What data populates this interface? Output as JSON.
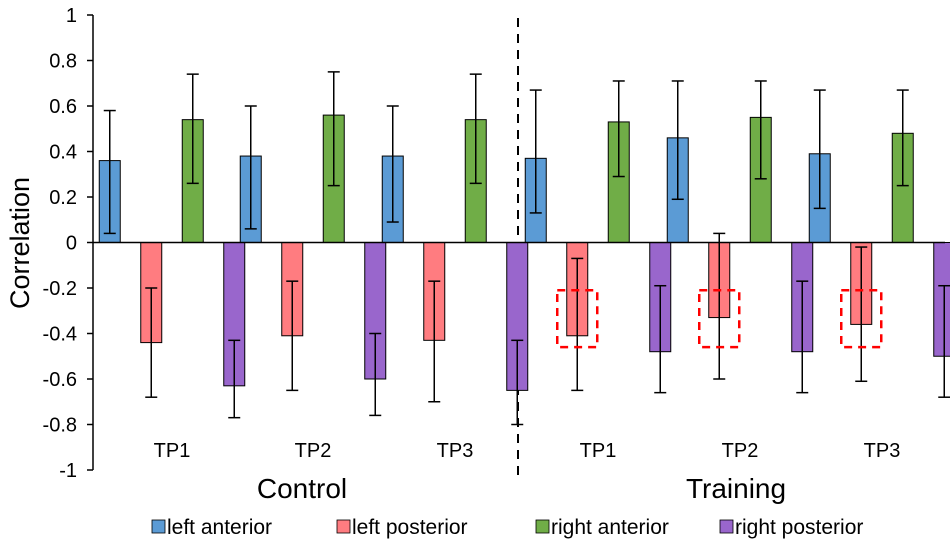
{
  "chart_data": {
    "type": "bar",
    "ylabel": "Correlation",
    "ylim": [
      -1,
      1
    ],
    "yticks": [
      "1",
      "0.8",
      "0.6",
      "0.4",
      "0.2",
      "0",
      "-0.2",
      "-0.4",
      "-0.6",
      "-0.8",
      "-1"
    ],
    "groups": [
      {
        "name": "Control",
        "categories": [
          "TP1",
          "TP2",
          "TP3"
        ]
      },
      {
        "name": "Training",
        "categories": [
          "TP1",
          "TP2",
          "TP3"
        ]
      }
    ],
    "series": [
      {
        "name": "left anterior",
        "color": "#5b9bd5",
        "values": [
          0.36,
          0.38,
          0.38,
          0.37,
          0.46,
          0.39
        ],
        "err_low": [
          0.04,
          0.06,
          0.09,
          0.13,
          0.19,
          0.15
        ],
        "err_high": [
          0.58,
          0.6,
          0.6,
          0.67,
          0.71,
          0.67
        ]
      },
      {
        "name": "left posterior",
        "color": "#ff7c80",
        "values": [
          -0.44,
          -0.41,
          -0.43,
          -0.41,
          -0.33,
          -0.36
        ],
        "err_low": [
          -0.68,
          -0.65,
          -0.7,
          -0.65,
          -0.6,
          -0.61
        ],
        "err_high": [
          -0.2,
          -0.17,
          -0.17,
          -0.07,
          0.04,
          -0.02
        ]
      },
      {
        "name": "right anterior",
        "color": "#70ad47",
        "values": [
          0.54,
          0.56,
          0.54,
          0.53,
          0.55,
          0.48
        ],
        "err_low": [
          0.26,
          0.25,
          0.26,
          0.29,
          0.28,
          0.25
        ],
        "err_high": [
          0.74,
          0.75,
          0.74,
          0.71,
          0.71,
          0.67
        ]
      },
      {
        "name": "right posterior",
        "color": "#9966cc",
        "values": [
          -0.63,
          -0.6,
          -0.65,
          -0.48,
          -0.48,
          -0.5
        ],
        "err_low": [
          -0.77,
          -0.76,
          -0.8,
          -0.66,
          -0.66,
          -0.68
        ],
        "err_high": [
          -0.43,
          -0.4,
          -0.43,
          -0.19,
          -0.17,
          -0.19
        ]
      }
    ],
    "highlight_boxes": {
      "series": "left posterior",
      "categories": [
        3,
        4,
        5
      ],
      "range": [
        -0.46,
        -0.21
      ],
      "color": "#ff0000",
      "style": "dashed"
    },
    "group_divider": {
      "style": "dashed",
      "color": "#000000"
    }
  }
}
